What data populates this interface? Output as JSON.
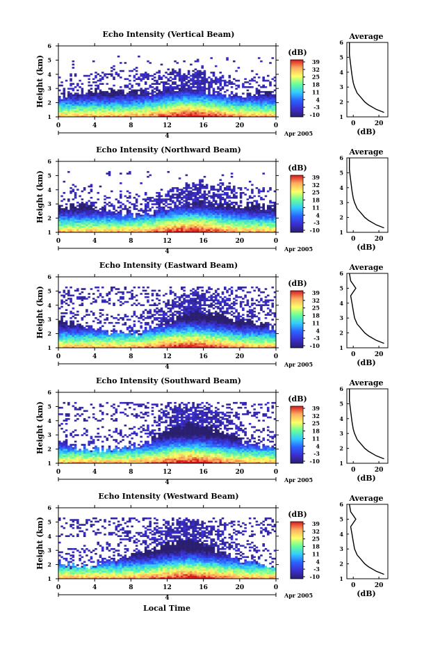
{
  "figure": {
    "xlabel_bottom": "Local Time",
    "date_label": "Apr 2005",
    "day_label": "4",
    "colorbar": {
      "title": "(dB)",
      "ticks": [
        "39",
        "32",
        "25",
        "18",
        "11",
        "4",
        "-3",
        "-10"
      ],
      "stops": [
        "#d7191c",
        "#fdae61",
        "#ffff66",
        "#66ff99",
        "#33ccff",
        "#2b62ff",
        "#3b2ed1",
        "#2a1f6e"
      ]
    },
    "average_panel": {
      "title": "Average",
      "xlabel": "(dB)",
      "xticks": [
        "0",
        "20"
      ],
      "yticks": [
        "1",
        "2",
        "3",
        "4",
        "5",
        "6"
      ]
    }
  },
  "chart_data": [
    {
      "type": "heatmap",
      "title": "Echo Intensity (Vertical Beam)",
      "xlabel": "Local Time",
      "ylabel": "Height (km)",
      "x_ticks": [
        "0",
        "4",
        "8",
        "12",
        "16",
        "20",
        "0"
      ],
      "y_ticks": [
        "1",
        "2",
        "3",
        "4",
        "5",
        "6"
      ],
      "xlim": [
        0,
        24
      ],
      "ylim": [
        1,
        6
      ],
      "zlim": [
        -10,
        39
      ],
      "average_profile": {
        "height_km": [
          1.3,
          1.5,
          1.8,
          2.0,
          2.3,
          2.6,
          3.0,
          3.3,
          3.8,
          4.5,
          5.2,
          6.0
        ],
        "db": [
          24,
          18,
          12,
          9,
          6,
          3,
          1,
          0,
          -1,
          -2,
          -3,
          -3
        ]
      }
    },
    {
      "type": "heatmap",
      "title": "Echo Intensity (Northward Beam)",
      "xlabel": "Local Time",
      "ylabel": "Height (km)",
      "x_ticks": [
        "0",
        "4",
        "8",
        "12",
        "16",
        "20",
        "0"
      ],
      "y_ticks": [
        "1",
        "2",
        "3",
        "4",
        "5",
        "6"
      ],
      "xlim": [
        0,
        24
      ],
      "ylim": [
        1,
        6
      ],
      "zlim": [
        -10,
        39
      ],
      "average_profile": {
        "height_km": [
          1.3,
          1.5,
          1.8,
          2.0,
          2.3,
          2.6,
          3.0,
          3.3,
          3.8,
          4.5,
          5.2,
          6.0
        ],
        "db": [
          24,
          18,
          12,
          9,
          6,
          3,
          1,
          0,
          -1,
          -2,
          -3,
          -3
        ]
      }
    },
    {
      "type": "heatmap",
      "title": "Echo Intensity (Eastward Beam)",
      "xlabel": "Local Time",
      "ylabel": "Height (km)",
      "x_ticks": [
        "0",
        "4",
        "8",
        "12",
        "16",
        "20",
        "0"
      ],
      "y_ticks": [
        "1",
        "2",
        "3",
        "4",
        "5",
        "6"
      ],
      "xlim": [
        0,
        24
      ],
      "ylim": [
        1,
        6
      ],
      "zlim": [
        -10,
        39
      ],
      "average_profile": {
        "height_km": [
          1.3,
          1.5,
          1.8,
          2.0,
          2.3,
          2.6,
          3.0,
          3.5,
          4.0,
          4.5,
          5.0,
          5.5,
          6.0
        ],
        "db": [
          24,
          18,
          12,
          9,
          6,
          3,
          1,
          0,
          -1,
          -2,
          2,
          -2,
          -3
        ]
      }
    },
    {
      "type": "heatmap",
      "title": "Echo Intensity (Southward Beam)",
      "xlabel": "Local Time",
      "ylabel": "Height (km)",
      "x_ticks": [
        "0",
        "4",
        "8",
        "12",
        "16",
        "20",
        "0"
      ],
      "y_ticks": [
        "1",
        "2",
        "3",
        "4",
        "5",
        "6"
      ],
      "xlim": [
        0,
        24
      ],
      "ylim": [
        1,
        6
      ],
      "zlim": [
        -10,
        39
      ],
      "average_profile": {
        "height_km": [
          1.3,
          1.5,
          1.8,
          2.0,
          2.3,
          2.6,
          3.0,
          3.3,
          3.8,
          4.5,
          5.2,
          6.0
        ],
        "db": [
          24,
          18,
          12,
          9,
          6,
          3,
          1,
          0,
          -1,
          -2,
          -3,
          -3
        ]
      }
    },
    {
      "type": "heatmap",
      "title": "Echo Intensity (Westward Beam)",
      "xlabel": "Local Time",
      "ylabel": "Height (km)",
      "x_ticks": [
        "0",
        "4",
        "8",
        "12",
        "16",
        "20",
        "0"
      ],
      "y_ticks": [
        "1",
        "2",
        "3",
        "4",
        "5",
        "6"
      ],
      "xlim": [
        0,
        24
      ],
      "ylim": [
        1,
        6
      ],
      "zlim": [
        -10,
        39
      ],
      "average_profile": {
        "height_km": [
          1.3,
          1.5,
          1.8,
          2.0,
          2.3,
          2.6,
          3.0,
          3.5,
          4.0,
          4.5,
          5.0,
          5.5,
          6.0
        ],
        "db": [
          24,
          18,
          12,
          9,
          6,
          3,
          1,
          0,
          -1,
          -2,
          2,
          -2,
          -3
        ]
      }
    }
  ]
}
